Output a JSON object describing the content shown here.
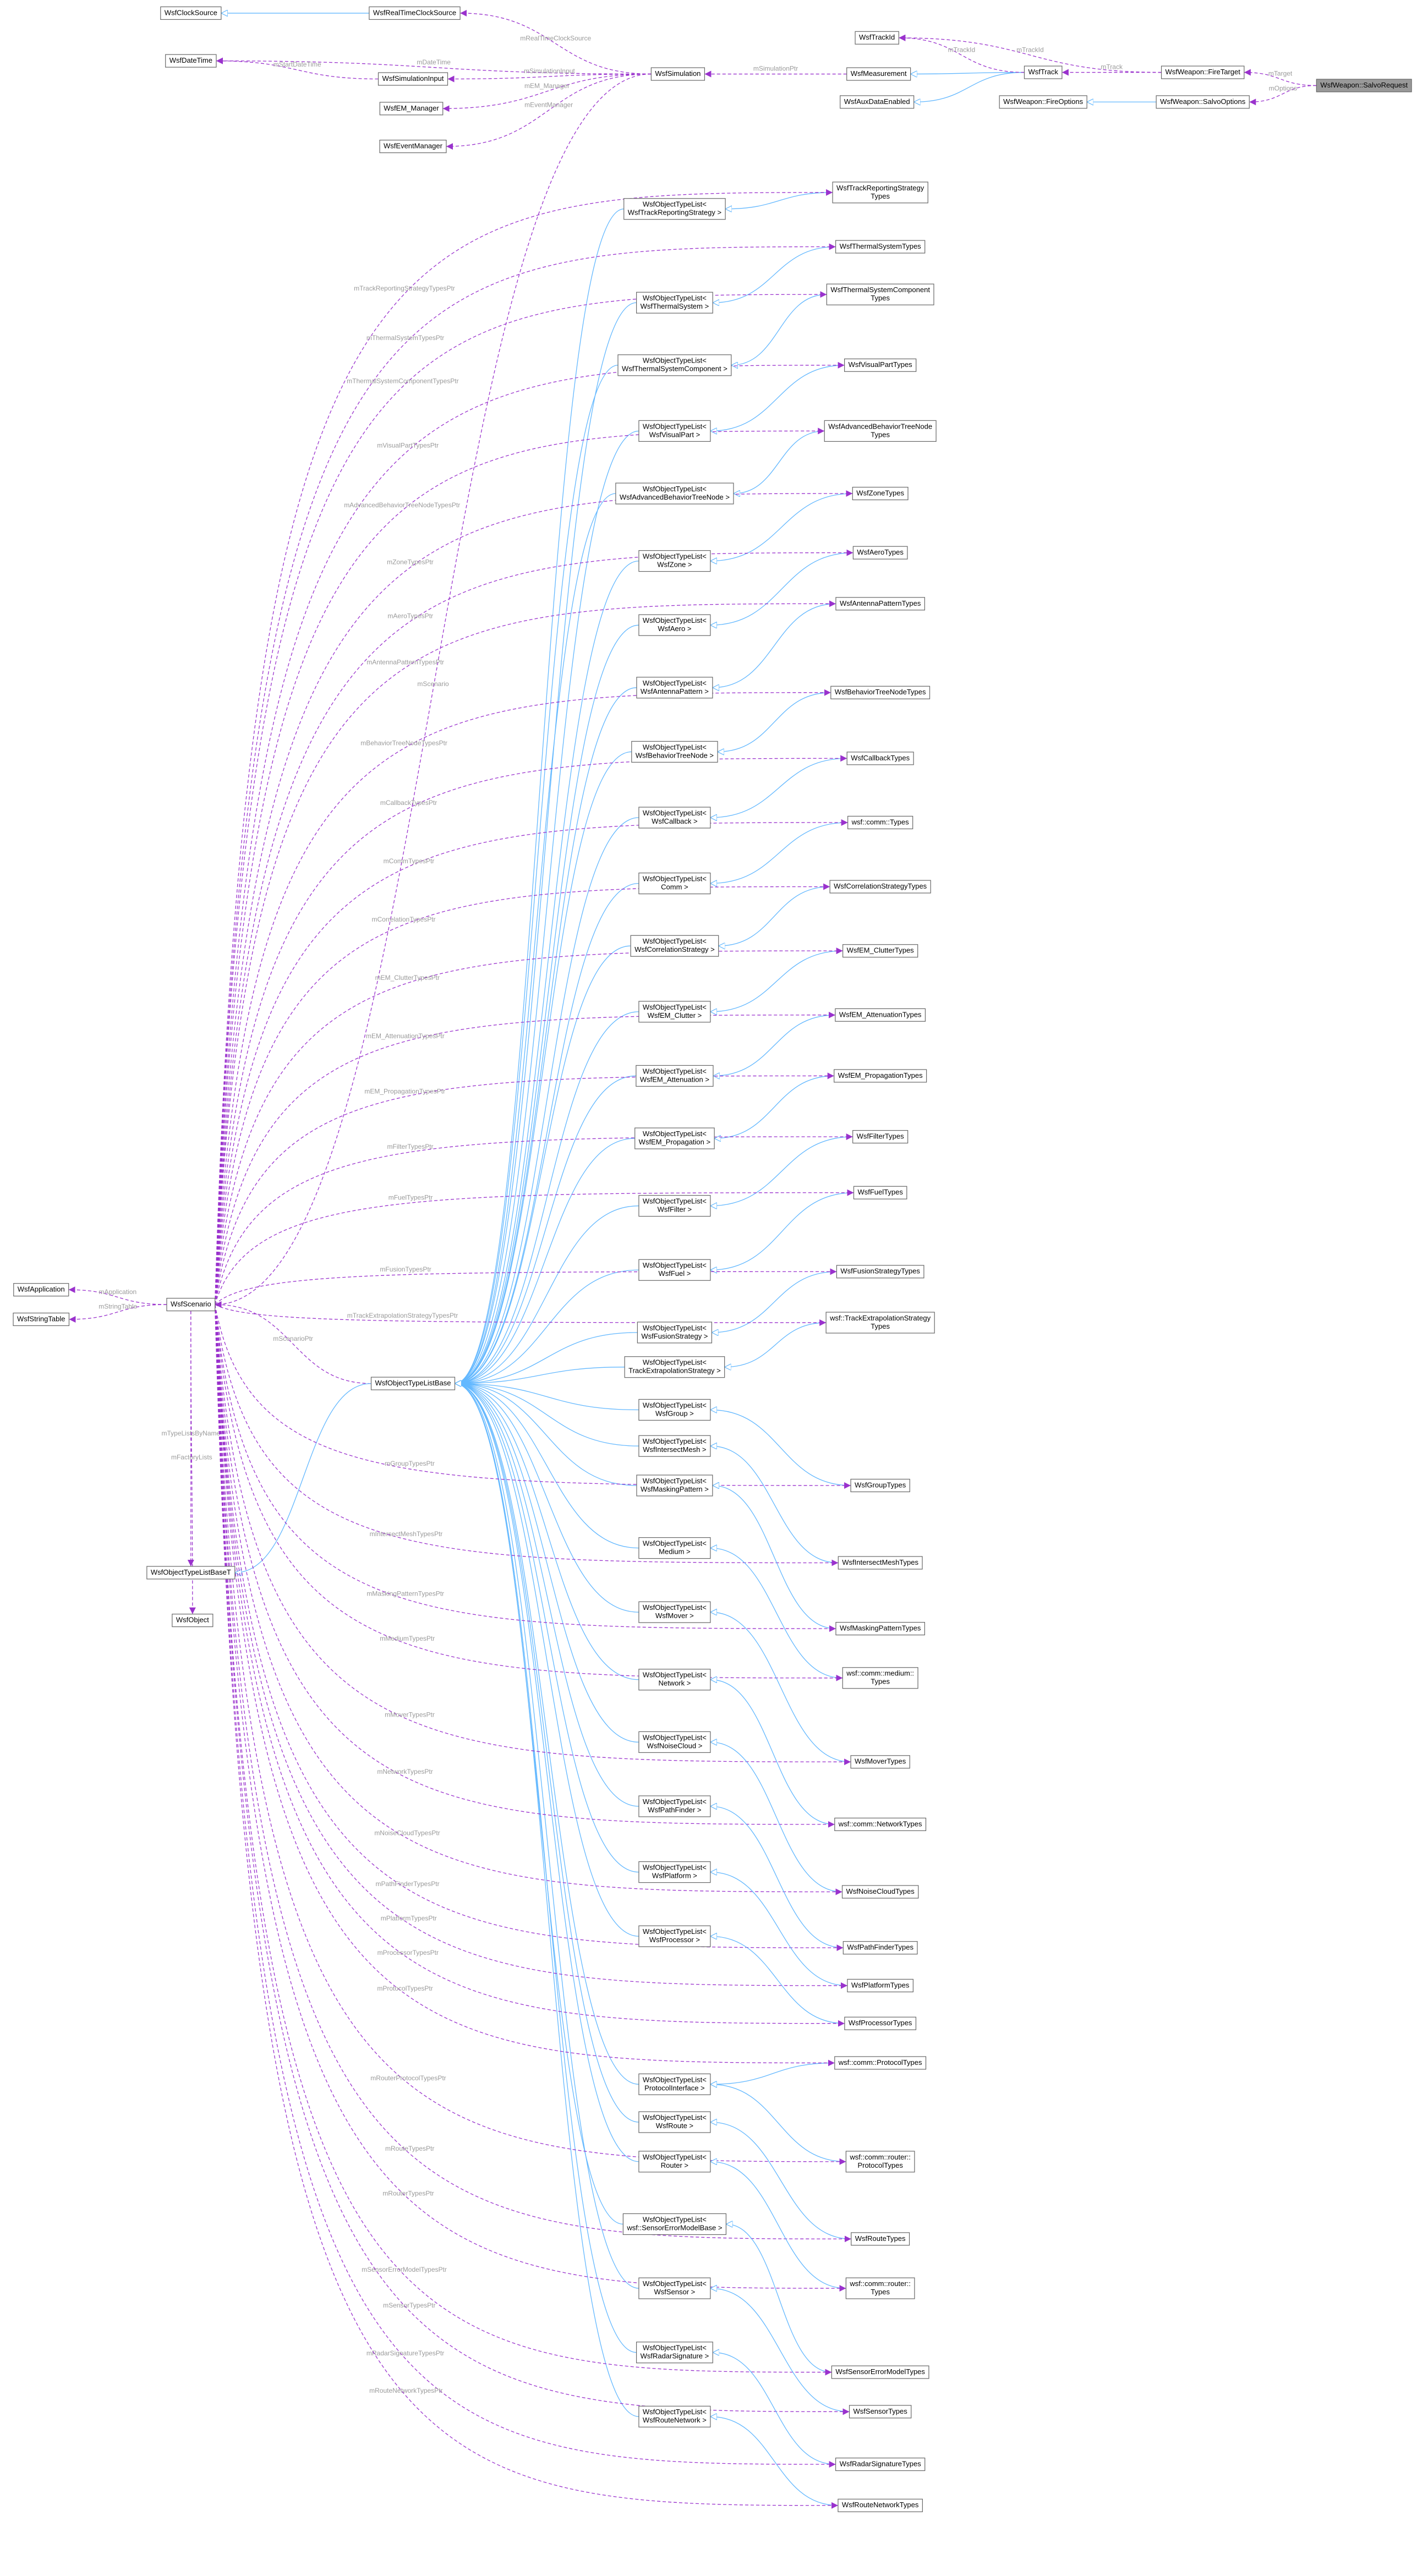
{
  "nodes": [
    {
      "label": [
        "WsfClockSource"
      ]
    },
    {
      "label": [
        "WsfRealTimeClockSource"
      ]
    },
    {
      "label": [
        "WsfDateTime"
      ]
    },
    {
      "label": [
        "WsfSimulationInput"
      ]
    },
    {
      "label": [
        "WsfEM_Manager"
      ]
    },
    {
      "label": [
        "WsfEventManager"
      ]
    },
    {
      "label": [
        "WsfSimulation"
      ]
    },
    {
      "label": [
        "WsfMeasurement"
      ]
    },
    {
      "label": [
        "WsfTrackId"
      ]
    },
    {
      "label": [
        "WsfAuxDataEnabled"
      ]
    },
    {
      "label": [
        "WsfTrack"
      ]
    },
    {
      "label": [
        "WsfWeapon::FireTarget"
      ]
    },
    {
      "label": [
        "WsfWeapon::FireOptions"
      ]
    },
    {
      "label": [
        "WsfWeapon::SalvoOptions"
      ]
    },
    {
      "label": [
        "WsfWeapon::SalvoRequest"
      ]
    },
    {
      "label": [
        "WsfApplication"
      ]
    },
    {
      "label": [
        "WsfStringTable"
      ]
    },
    {
      "label": [
        "WsfScenario"
      ]
    },
    {
      "label": [
        "WsfObjectTypeListBase"
      ]
    },
    {
      "label": [
        "WsfObjectTypeListBaseT"
      ]
    },
    {
      "label": [
        "WsfObject"
      ]
    },
    {
      "label": [
        "WsfObjectTypeList<",
        "WsfTrackReportingStrategy >"
      ]
    },
    {
      "label": [
        "WsfObjectTypeList<",
        "WsfThermalSystem >"
      ]
    },
    {
      "label": [
        "WsfObjectTypeList<",
        "WsfThermalSystemComponent >"
      ]
    },
    {
      "label": [
        "WsfObjectTypeList<",
        "WsfVisualPart >"
      ]
    },
    {
      "label": [
        "WsfObjectTypeList<",
        "WsfAdvancedBehaviorTreeNode >"
      ]
    },
    {
      "label": [
        "WsfObjectTypeList<",
        "WsfZone >"
      ]
    },
    {
      "label": [
        "WsfObjectTypeList<",
        "WsfAero >"
      ]
    },
    {
      "label": [
        "WsfObjectTypeList<",
        "WsfAntennaPattern >"
      ]
    },
    {
      "label": [
        "WsfObjectTypeList<",
        "WsfBehaviorTreeNode >"
      ]
    },
    {
      "label": [
        "WsfObjectTypeList<",
        "WsfCallback >"
      ]
    },
    {
      "label": [
        "WsfObjectTypeList<",
        "Comm >"
      ]
    },
    {
      "label": [
        "WsfObjectTypeList<",
        "WsfCorrelationStrategy >"
      ]
    },
    {
      "label": [
        "WsfObjectTypeList<",
        "WsfEM_Clutter >"
      ]
    },
    {
      "label": [
        "WsfObjectTypeList<",
        "WsfEM_Attenuation >"
      ]
    },
    {
      "label": [
        "WsfObjectTypeList<",
        "WsfEM_Propagation >"
      ]
    },
    {
      "label": [
        "WsfObjectTypeList<",
        "WsfFilter >"
      ]
    },
    {
      "label": [
        "WsfObjectTypeList<",
        "WsfFuel >"
      ]
    },
    {
      "label": [
        "WsfObjectTypeList<",
        "WsfFusionStrategy >"
      ]
    },
    {
      "label": [
        "WsfObjectTypeList<",
        "TrackExtrapolationStrategy >"
      ]
    },
    {
      "label": [
        "WsfObjectTypeList<",
        "WsfGroup >"
      ]
    },
    {
      "label": [
        "WsfObjectTypeList<",
        "WsfIntersectMesh >"
      ]
    },
    {
      "label": [
        "WsfObjectTypeList<",
        "WsfMaskingPattern >"
      ]
    },
    {
      "label": [
        "WsfObjectTypeList<",
        "Medium >"
      ]
    },
    {
      "label": [
        "WsfObjectTypeList<",
        "WsfMover >"
      ]
    },
    {
      "label": [
        "WsfObjectTypeList<",
        "Network >"
      ]
    },
    {
      "label": [
        "WsfObjectTypeList<",
        "WsfNoiseCloud >"
      ]
    },
    {
      "label": [
        "WsfObjectTypeList<",
        "WsfPathFinder >"
      ]
    },
    {
      "label": [
        "WsfObjectTypeList<",
        "WsfPlatform >"
      ]
    },
    {
      "label": [
        "WsfObjectTypeList<",
        "WsfProcessor >"
      ]
    },
    {
      "label": [
        "WsfObjectTypeList<",
        "ProtocolInterface >"
      ]
    },
    {
      "label": [
        "WsfObjectTypeList<",
        "WsfRoute >"
      ]
    },
    {
      "label": [
        "WsfObjectTypeList<",
        "Router >"
      ]
    },
    {
      "label": [
        "WsfObjectTypeList<",
        "wsf::SensorErrorModelBase >"
      ]
    },
    {
      "label": [
        "WsfObjectTypeList<",
        "WsfSensor >"
      ]
    },
    {
      "label": [
        "WsfObjectTypeList<",
        "WsfRadarSignature >"
      ]
    },
    {
      "label": [
        "WsfObjectTypeList<",
        "WsfRouteNetwork >"
      ]
    },
    {
      "label": [
        "WsfTrackReportingStrategy",
        "Types"
      ]
    },
    {
      "label": [
        "WsfThermalSystemTypes"
      ]
    },
    {
      "label": [
        "WsfThermalSystemComponent",
        "Types"
      ]
    },
    {
      "label": [
        "WsfVisualPartTypes"
      ]
    },
    {
      "label": [
        "WsfAdvancedBehaviorTreeNode",
        "Types"
      ]
    },
    {
      "label": [
        "WsfZoneTypes"
      ]
    },
    {
      "label": [
        "WsfAeroTypes"
      ]
    },
    {
      "label": [
        "WsfAntennaPatternTypes"
      ]
    },
    {
      "label": [
        "WsfBehaviorTreeNodeTypes"
      ]
    },
    {
      "label": [
        "WsfCallbackTypes"
      ]
    },
    {
      "label": [
        "wsf::comm::Types"
      ]
    },
    {
      "label": [
        "WsfCorrelationStrategyTypes"
      ]
    },
    {
      "label": [
        "WsfEM_ClutterTypes"
      ]
    },
    {
      "label": [
        "WsfEM_AttenuationTypes"
      ]
    },
    {
      "label": [
        "WsfEM_PropagationTypes"
      ]
    },
    {
      "label": [
        "WsfFilterTypes"
      ]
    },
    {
      "label": [
        "WsfFuelTypes"
      ]
    },
    {
      "label": [
        "WsfFusionStrategyTypes"
      ]
    },
    {
      "label": [
        "wsf::TrackExtrapolationStrategy",
        "Types"
      ]
    },
    {
      "label": [
        "WsfGroupTypes"
      ]
    },
    {
      "label": [
        "WsfIntersectMeshTypes"
      ]
    },
    {
      "label": [
        "WsfMaskingPatternTypes"
      ]
    },
    {
      "label": [
        "wsf::comm::medium::",
        "Types"
      ]
    },
    {
      "label": [
        "WsfMoverTypes"
      ]
    },
    {
      "label": [
        "wsf::comm::NetworkTypes"
      ]
    },
    {
      "label": [
        "WsfNoiseCloudTypes"
      ]
    },
    {
      "label": [
        "WsfPathFinderTypes"
      ]
    },
    {
      "label": [
        "WsfPlatformTypes"
      ]
    },
    {
      "label": [
        "WsfProcessorTypes"
      ]
    },
    {
      "label": [
        "wsf::comm::ProtocolTypes"
      ]
    },
    {
      "label": [
        "wsf::comm::router::",
        "ProtocolTypes"
      ]
    },
    {
      "label": [
        "WsfRouteTypes"
      ]
    },
    {
      "label": [
        "wsf::comm::router::",
        "Types"
      ]
    },
    {
      "label": [
        "WsfSensorErrorModelTypes"
      ]
    },
    {
      "label": [
        "WsfSensorTypes"
      ]
    },
    {
      "label": [
        "WsfRadarSignatureTypes"
      ]
    },
    {
      "label": [
        "WsfRouteNetworkTypes"
      ]
    }
  ],
  "edge_labels": [
    "mRealTimeClockSource",
    "mDateTime",
    "mStartDateTime",
    "mSimulationInput",
    "mEM_Manager",
    "mEventManager",
    "mScenario",
    "mSimulationPtr",
    "mTrackId",
    "mTrackId",
    "mTrack",
    "mTarget",
    "mOptions",
    "mApplication",
    "mStringTable",
    "mScenarioPtr",
    "mTypeListsByName",
    "mFactoryLists",
    "mTrackReportingStrategyTypesPtr",
    "mThermalSystemTypesPtr",
    "mThermalSystemComponentTypesPtr",
    "mVisualPartTypesPtr",
    "mAdvancedBehaviorTreeNodeTypesPtr",
    "mZoneTypesPtr",
    "mAeroTypesPtr",
    "mAntennaPatternTypesPtr",
    "mBehaviorTreeNodeTypesPtr",
    "mCallbackTypesPtr",
    "mCommTypesPtr",
    "mCorrelationTypesPtr",
    "mEM_ClutterTypesPtr",
    "mEM_AttenuationTypesPtr",
    "mEM_PropagationTypesPtr",
    "mFilterTypesPtr",
    "mFuelTypesPtr",
    "mFusionTypesPtr",
    "mTrackExtrapolationStrategyTypesPtr",
    "mGroupTypesPtr",
    "mIntersectMeshTypesPtr",
    "mMaskingPatternTypesPtr",
    "mMediumTypesPtr",
    "mMoverTypesPtr",
    "mNetworkTypesPtr",
    "mNoiseCloudTypesPtr",
    "mPathFinderTypesPtr",
    "mPlatformTypesPtr",
    "mProcessorTypesPtr",
    "mProtocolTypesPtr",
    "mRouterProtocolTypesPtr",
    "mRouteTypesPtr",
    "mRouterTypesPtr",
    "mSensorErrorModelTypesPtr",
    "mSensorTypesPtr",
    "mRadarSignatureTypesPtr",
    "mRouteNetworkTypesPtr"
  ]
}
